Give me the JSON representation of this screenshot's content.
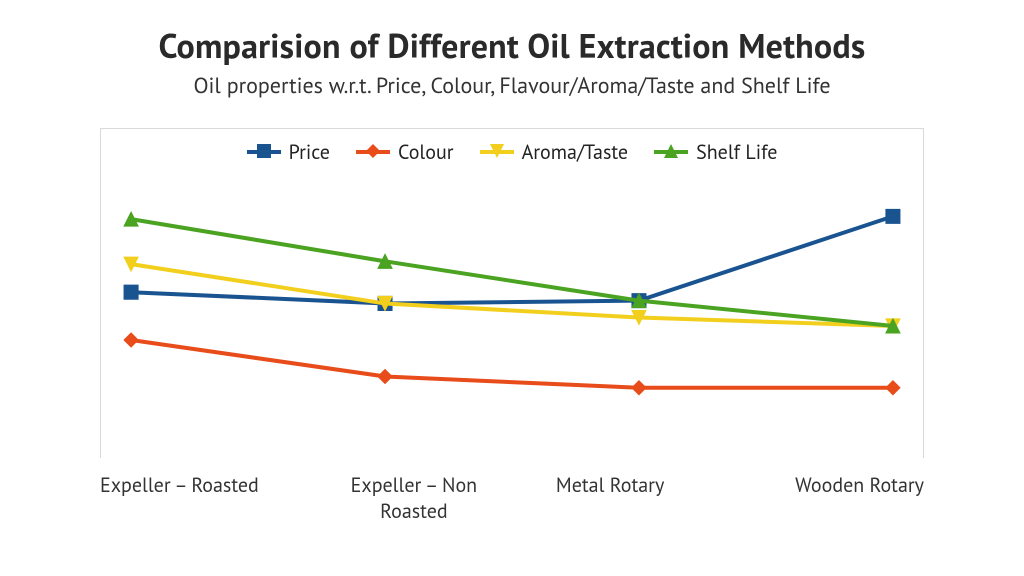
{
  "chart": {
    "type": "line",
    "title": "Comparision of Different Oil Extraction Methods",
    "subtitle": "Oil properties w.r.t. Price, Colour, Flavour/Aroma/Taste and Shelf Life",
    "title_fontsize": 34,
    "subtitle_fontsize": 22,
    "label_fontsize": 20,
    "background_color": "#ffffff",
    "plot_border_color": "#d9d9d9",
    "line_width": 4,
    "marker_size": 14,
    "ylim": [
      0,
      10
    ],
    "categories": [
      "Expeller – Roasted",
      "Expeller – Non Roasted",
      "Metal Rotary",
      "Wooden Rotary"
    ],
    "series": [
      {
        "name": "Price",
        "color": "#1a5490",
        "marker": "square",
        "values": [
          5.9,
          5.5,
          5.6,
          8.6
        ]
      },
      {
        "name": "Colour",
        "color": "#e84c1a",
        "marker": "diamond",
        "values": [
          4.2,
          2.9,
          2.5,
          2.5
        ]
      },
      {
        "name": "Aroma/Taste",
        "color": "#f2cf1d",
        "marker": "triangle-down",
        "values": [
          6.9,
          5.5,
          5.0,
          4.7
        ]
      },
      {
        "name": "Shelf Life",
        "color": "#4aa321",
        "marker": "triangle-up",
        "values": [
          8.5,
          7.0,
          5.6,
          4.7
        ]
      }
    ],
    "legend_position": "top-center-inside"
  }
}
